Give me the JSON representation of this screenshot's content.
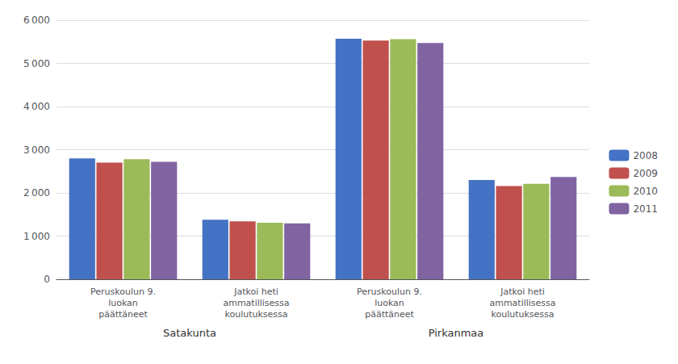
{
  "chart_data": {
    "type": "bar",
    "categories": [
      "Peruskoulun 9.\nluokan\npäättäneet",
      "Jatkoi heti\nammatillisessa\nkoulutuksessa",
      "Peruskoulun 9.\nluokan\npäättäneet",
      "Jatkoi heti\nammatillisessa\nkoulutuksessa"
    ],
    "series": [
      {
        "name": "2008",
        "color": "#4472C4",
        "values": [
          2800,
          1380,
          5570,
          2300
        ]
      },
      {
        "name": "2009",
        "color": "#C0504D",
        "values": [
          2700,
          1340,
          5530,
          2160
        ]
      },
      {
        "name": "2010",
        "color": "#9BBB59",
        "values": [
          2780,
          1310,
          5560,
          2210
        ]
      },
      {
        "name": "2011",
        "color": "#8064A2",
        "values": [
          2720,
          1295,
          5470,
          2370
        ]
      }
    ],
    "annotations": [
      "Satakunta",
      "Pirkanmaa"
    ],
    "ylim": [
      0,
      6000
    ],
    "yticks": [
      0,
      {
        "value": 1000,
        "label": "1 000"
      },
      {
        "value": 2000,
        "label": "2 000"
      },
      {
        "value": 3000,
        "label": "3 000"
      },
      {
        "value": 4000,
        "label": "4 000"
      },
      {
        "value": 5000,
        "label": "5 000"
      },
      {
        "value": 6000,
        "label": "6 000"
      }
    ],
    "grid": true,
    "legend": "right"
  }
}
